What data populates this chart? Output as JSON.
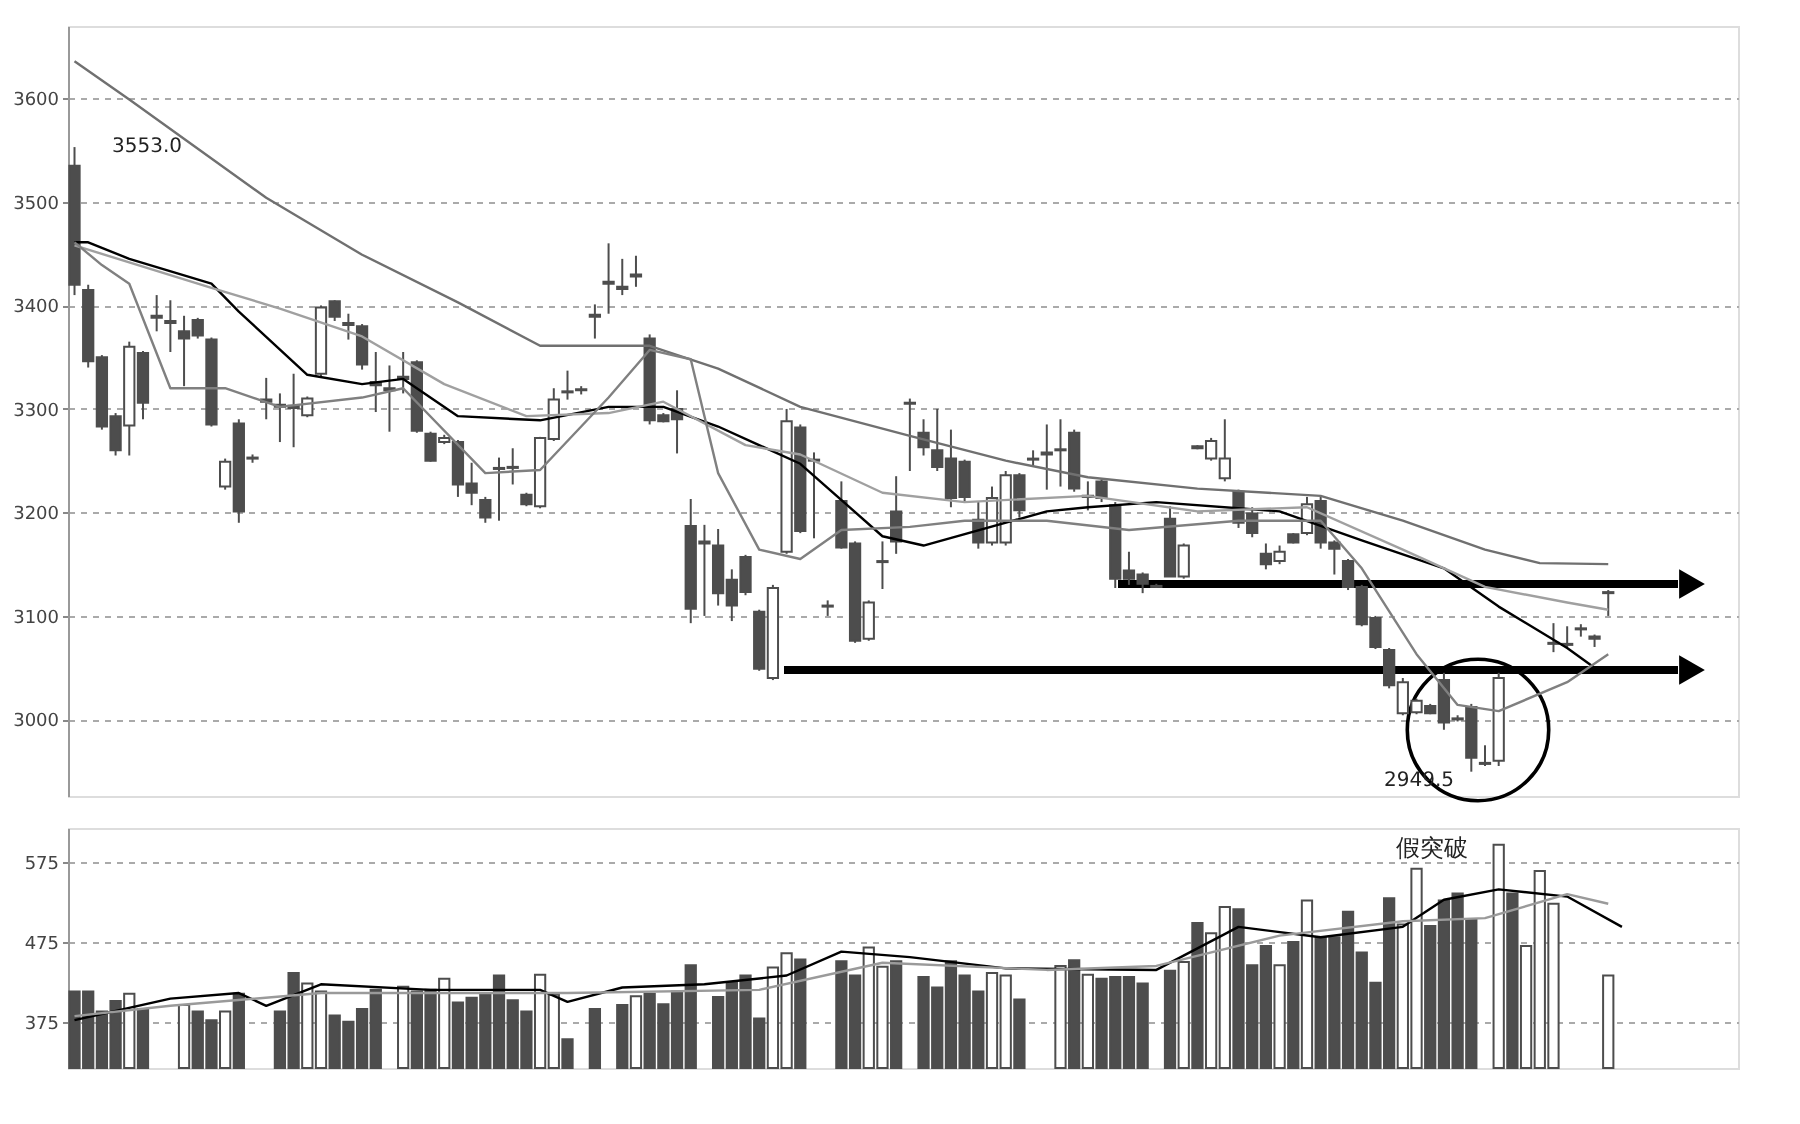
{
  "chart_data": [
    {
      "type": "candlestick",
      "ylim": [
        2926,
        3670
      ],
      "yticks": [
        3000,
        3100,
        3200,
        3300,
        3400,
        3500,
        3600
      ],
      "tick_labels": "y",
      "grid": "y",
      "categories": [
        null,
        null,
        null,
        null,
        null,
        null,
        null,
        null,
        null,
        null,
        null,
        null,
        null,
        null,
        null,
        null,
        null,
        null,
        null,
        null,
        null,
        null,
        null,
        null,
        null,
        null,
        null,
        null,
        null,
        null,
        null,
        null,
        null,
        null,
        null,
        null,
        null,
        null,
        null,
        null,
        null,
        null,
        null,
        null,
        null,
        null,
        null,
        null,
        null,
        null,
        null,
        null,
        null,
        null,
        null,
        null,
        null,
        null,
        null,
        null,
        null,
        null,
        null,
        null,
        null,
        null,
        null,
        null,
        null,
        null,
        null,
        null,
        null,
        null,
        null,
        null,
        null,
        null,
        null,
        null,
        null,
        null,
        null,
        null,
        null,
        null,
        null,
        null,
        null,
        null,
        null,
        null,
        null,
        null,
        null,
        null,
        null,
        null,
        null,
        null,
        null,
        null,
        null,
        null,
        null,
        null,
        null,
        null,
        null,
        null,
        null,
        null,
        null,
        null,
        null,
        null,
        null,
        null,
        null,
        null,
        null,
        null
      ],
      "annotations": [
        "3553.0",
        "2949.5"
      ],
      "series": [
        {
          "color": "#4d4d4d",
          "ohlc": [
            [
              3535,
              3553,
              3410,
              3420
            ],
            [
              3415,
              3420,
              3340,
              3346
            ],
            [
              3350,
              3352,
              3280,
              3283
            ],
            [
              3293,
              3296,
              3255,
              3260
            ],
            [
              3284,
              3365,
              3255,
              3360
            ],
            [
              3354,
              3356,
              3290,
              3306
            ],
            [
              3390,
              3410,
              3375,
              3388
            ],
            [
              3385,
              3405,
              3355,
              3383
            ],
            [
              3375,
              3390,
              3322,
              3368
            ],
            [
              3386,
              3388,
              3368,
              3371
            ],
            [
              3367,
              3369,
              3283,
              3285
            ],
            [
              3225,
              3252,
              3222,
              3249
            ],
            [
              3286,
              3290,
              3190,
              3201
            ],
            [
              3253,
              3256,
              3248,
              3252
            ],
            [
              3309,
              3330,
              3290,
              3307
            ],
            [
              3304,
              3315,
              3268,
              3302
            ],
            [
              3303,
              3334,
              3263,
              3301
            ],
            [
              3294,
              3312,
              3292,
              3310
            ],
            [
              3334,
              3400,
              3330,
              3398
            ],
            [
              3404,
              3405,
              3385,
              3389
            ],
            [
              3383,
              3392,
              3367,
              3381
            ],
            [
              3380,
              3382,
              3338,
              3343
            ],
            [
              3326,
              3355,
              3297,
              3323
            ],
            [
              3320,
              3342,
              3278,
              3318
            ],
            [
              3331,
              3355,
              3315,
              3329
            ],
            [
              3345,
              3347,
              3277,
              3279
            ],
            [
              3276,
              3278,
              3249,
              3250
            ],
            [
              3268,
              3275,
              3266,
              3272
            ],
            [
              3268,
              3270,
              3215,
              3227
            ],
            [
              3228,
              3248,
              3207,
              3219
            ],
            [
              3212,
              3215,
              3190,
              3195
            ],
            [
              3243,
              3253,
              3192,
              3242
            ],
            [
              3243,
              3262,
              3227,
              3244
            ],
            [
              3217,
              3219,
              3206,
              3208
            ],
            [
              3206,
              3273,
              3204,
              3272
            ],
            [
              3271,
              3320,
              3269,
              3309
            ],
            [
              3317,
              3337,
              3309,
              3316
            ],
            [
              3319,
              3322,
              3314,
              3318
            ],
            [
              3391,
              3401,
              3368,
              3389
            ],
            [
              3423,
              3460,
              3392,
              3421
            ],
            [
              3418,
              3445,
              3410,
              3416
            ],
            [
              3430,
              3448,
              3418,
              3428
            ],
            [
              3368,
              3372,
              3285,
              3289
            ],
            [
              3294,
              3296,
              3287,
              3288
            ],
            [
              3300,
              3318,
              3257,
              3290
            ],
            [
              3187,
              3213,
              3093,
              3107
            ],
            [
              3172,
              3188,
              3100,
              3170
            ],
            [
              3168,
              3184,
              3110,
              3122
            ],
            [
              3135,
              3145,
              3095,
              3110
            ],
            [
              3157,
              3159,
              3120,
              3123
            ],
            [
              3104,
              3106,
              3047,
              3049
            ],
            [
              3040,
              3130,
              3038,
              3127
            ],
            [
              3162,
              3300,
              3160,
              3288
            ],
            [
              3282,
              3285,
              3180,
              3182
            ],
            [
              3251,
              3258,
              3175,
              3250
            ],
            [
              3110,
              3115,
              3100,
              3109
            ],
            [
              3211,
              3230,
              3165,
              3166
            ],
            [
              3170,
              3172,
              3074,
              3076
            ],
            [
              3078,
              3115,
              3076,
              3113
            ],
            [
              3153,
              3172,
              3126,
              3152
            ],
            [
              3201,
              3235,
              3160,
              3172
            ],
            [
              3306,
              3310,
              3240,
              3305
            ],
            [
              3277,
              3290,
              3255,
              3263
            ],
            [
              3260,
              3300,
              3240,
              3244
            ],
            [
              3252,
              3280,
              3205,
              3214
            ],
            [
              3249,
              3251,
              3210,
              3215
            ],
            [
              3193,
              3210,
              3165,
              3171
            ],
            [
              3171,
              3225,
              3168,
              3214
            ],
            [
              3171,
              3240,
              3168,
              3236
            ],
            [
              3236,
              3238,
              3195,
              3202
            ],
            [
              3251,
              3260,
              3245,
              3252
            ],
            [
              3258,
              3285,
              3222,
              3256
            ],
            [
              3261,
              3290,
              3225,
              3260
            ],
            [
              3277,
              3280,
              3220,
              3223
            ],
            [
              3216,
              3230,
              3202,
              3215
            ],
            [
              3230,
              3232,
              3210,
              3214
            ],
            [
              3207,
              3210,
              3127,
              3136
            ],
            [
              3144,
              3162,
              3130,
              3136
            ],
            [
              3140,
              3142,
              3122,
              3131
            ],
            [
              3129,
              3131,
              3127,
              3128
            ],
            [
              3194,
              3206,
              3138,
              3138
            ],
            [
              3138,
              3170,
              3136,
              3168
            ],
            [
              3264,
              3265,
              3261,
              3262
            ],
            [
              3252,
              3272,
              3250,
              3269
            ],
            [
              3233,
              3290,
              3230,
              3252
            ],
            [
              3220,
              3222,
              3185,
              3190
            ],
            [
              3199,
              3205,
              3176,
              3180
            ],
            [
              3160,
              3170,
              3145,
              3150
            ],
            [
              3153,
              3168,
              3150,
              3162
            ],
            [
              3179,
              3180,
              3170,
              3171
            ],
            [
              3180,
              3215,
              3178,
              3208
            ],
            [
              3211,
              3215,
              3165,
              3171
            ],
            [
              3171,
              3173,
              3140,
              3165
            ],
            [
              3153,
              3155,
              3125,
              3128
            ],
            [
              3128,
              3130,
              3090,
              3092
            ],
            [
              3098,
              3100,
              3068,
              3070
            ],
            [
              3067,
              3069,
              3030,
              3033
            ],
            [
              3006,
              3040,
              3004,
              3036
            ],
            [
              3007,
              3020,
              3005,
              3018
            ],
            [
              3013,
              3015,
              3005,
              3006
            ],
            [
              3038,
              3045,
              2990,
              2997
            ],
            [
              3001,
              3004,
              2998,
              3000
            ],
            [
              3012,
              3015,
              2949.5,
              2963
            ],
            [
              2957,
              2975,
              2955,
              2958
            ],
            [
              2960,
              3045,
              2955,
              3040
            ],
            null,
            null,
            null,
            [
              3073,
              3093,
              3065,
              3074
            ],
            [
              3073,
              3090,
              3070,
              3072
            ],
            [
              3088,
              3092,
              3080,
              3087
            ],
            [
              3080,
              3082,
              3070,
              3078
            ],
            [
              3123,
              3125,
              3100,
              3122
            ],
            null,
            null,
            null,
            null,
            null,
            null,
            null,
            null,
            null
          ]
        },
        {
          "type": "line",
          "color": "#707070",
          "values": [
            3636,
            null,
            null,
            null,
            3599,
            null,
            null,
            null,
            null,
            null,
            null,
            null,
            null,
            null,
            3504,
            null,
            null,
            null,
            null,
            null,
            null,
            3449,
            null,
            null,
            null,
            null,
            null,
            null,
            3403,
            null,
            null,
            null,
            null,
            null,
            3361,
            null,
            null,
            null,
            null,
            null,
            null,
            null,
            3361,
            null,
            null,
            null,
            null,
            3339,
            null,
            null,
            null,
            null,
            null,
            3302,
            null,
            null,
            null,
            null,
            null,
            null,
            null,
            3274,
            null,
            null,
            null,
            null,
            null,
            null,
            3250,
            null,
            null,
            null,
            null,
            null,
            3234,
            null,
            null,
            null,
            null,
            null,
            null,
            null,
            3223,
            null,
            null,
            null,
            null,
            null,
            null,
            null,
            null,
            3216,
            null,
            null,
            null,
            null,
            null,
            3192,
            null,
            null,
            null,
            null,
            null,
            3164,
            null,
            null,
            null,
            3151,
            null,
            null,
            null,
            null,
            3150,
            null,
            null,
            null,
            null,
            null,
            null,
            null,
            null,
            null
          ]
        },
        {
          "type": "line",
          "color": "#000000",
          "values": [
            3461,
            3461,
            null,
            null,
            3445,
            null,
            null,
            null,
            null,
            null,
            3421,
            null,
            3394,
            null,
            null,
            null,
            null,
            3333,
            null,
            null,
            null,
            3324,
            null,
            null,
            3329,
            null,
            null,
            null,
            3293,
            null,
            null,
            null,
            null,
            null,
            3289,
            null,
            null,
            null,
            null,
            3302,
            null,
            null,
            null,
            3302,
            null,
            null,
            null,
            3283,
            null,
            null,
            null,
            null,
            null,
            3247,
            null,
            null,
            null,
            null,
            null,
            3177,
            null,
            null,
            3168,
            null,
            null,
            null,
            null,
            null,
            null,
            null,
            null,
            3201,
            null,
            null,
            3205,
            null,
            null,
            null,
            null,
            3210,
            null,
            null,
            null,
            null,
            null,
            null,
            null,
            null,
            3201,
            null,
            null,
            null,
            null,
            null,
            3173,
            null,
            null,
            null,
            null,
            null,
            3146,
            null,
            null,
            null,
            3109,
            null,
            null,
            null,
            null,
            3069,
            null,
            3050,
            null,
            null,
            null,
            null,
            null,
            null,
            null,
            null,
            null,
            null
          ]
        },
        {
          "type": "line",
          "color": "#a0a0a0",
          "values": [
            3458,
            null,
            null,
            null,
            null,
            null,
            null,
            null,
            null,
            null,
            3417,
            null,
            null,
            null,
            null,
            3397,
            null,
            null,
            null,
            null,
            null,
            3370,
            null,
            null,
            null,
            null,
            null,
            3324,
            null,
            null,
            null,
            null,
            null,
            3293,
            null,
            null,
            null,
            null,
            null,
            3296,
            null,
            null,
            null,
            3307,
            null,
            null,
            null,
            null,
            null,
            3265,
            null,
            null,
            null,
            3256,
            null,
            null,
            null,
            null,
            null,
            3219,
            null,
            null,
            null,
            null,
            null,
            3210,
            null,
            null,
            null,
            null,
            null,
            null,
            null,
            null,
            3216,
            null,
            null,
            null,
            null,
            null,
            null,
            null,
            3201,
            null,
            null,
            null,
            null,
            null,
            null,
            null,
            3205,
            null,
            null,
            null,
            null,
            null,
            null,
            3164,
            null,
            null,
            null,
            null,
            null,
            3128,
            null,
            null,
            null,
            null,
            null,
            3113,
            null,
            null,
            3106,
            null,
            null,
            null,
            null,
            null,
            null,
            null,
            null,
            null
          ]
        },
        {
          "type": "line",
          "color": "#808080",
          "values": [
            3461,
            null,
            3439,
            null,
            3421,
            null,
            null,
            3320,
            null,
            null,
            null,
            3320,
            null,
            null,
            null,
            3302,
            null,
            null,
            null,
            null,
            null,
            3311,
            null,
            null,
            3320,
            null,
            null,
            null,
            null,
            null,
            3238,
            null,
            null,
            null,
            3241,
            null,
            null,
            null,
            null,
            3311,
            null,
            null,
            3357,
            null,
            null,
            3348,
            null,
            3238,
            null,
            null,
            3164,
            null,
            null,
            3155,
            null,
            null,
            3183,
            null,
            null,
            null,
            null,
            3186,
            null,
            null,
            null,
            3192,
            null,
            null,
            null,
            null,
            null,
            3192,
            null,
            null,
            null,
            null,
            null,
            3183,
            null,
            null,
            null,
            null,
            null,
            null,
            null,
            3192,
            null,
            null,
            null,
            null,
            null,
            3192,
            null,
            null,
            3146,
            null,
            null,
            null,
            3063,
            null,
            null,
            3014,
            null,
            null,
            3008,
            null,
            null,
            null,
            null,
            3036,
            null,
            null,
            3063,
            null,
            null,
            null,
            null,
            null,
            null,
            null,
            null,
            null
          ]
        }
      ]
    },
    {
      "type": "bar",
      "ylim": [
        317,
        618
      ],
      "yticks": [
        375,
        475,
        575
      ],
      "tick_labels": "y",
      "grid": "y",
      "categories": [
        null,
        null,
        null,
        null,
        null,
        null,
        null,
        null,
        null,
        null,
        null,
        null,
        null,
        null,
        null,
        null,
        null,
        null,
        null,
        null,
        null,
        null,
        null,
        null,
        null,
        null,
        null,
        null,
        null,
        null,
        null,
        null,
        null,
        null,
        null,
        null,
        null,
        null,
        null,
        null,
        null,
        null,
        null,
        null,
        null,
        null,
        null,
        null,
        null,
        null,
        null,
        null,
        null,
        null,
        null,
        null,
        null,
        null,
        null,
        null,
        null,
        null,
        null,
        null,
        null,
        null,
        null,
        null,
        null,
        null,
        null,
        null,
        null,
        null,
        null,
        null,
        null,
        null,
        null,
        null,
        null,
        null,
        null,
        null,
        null,
        null,
        null,
        null,
        null,
        null,
        null,
        null,
        null,
        null,
        null,
        null,
        null,
        null,
        null,
        null,
        null,
        null,
        null,
        null,
        null,
        null,
        null,
        null,
        null,
        null,
        null,
        null,
        null,
        null,
        null,
        null,
        null,
        null,
        null,
        null,
        null,
        null
      ],
      "annotations": [
        "假突破"
      ],
      "series": [
        {
          "color": "#4d4d4d",
          "values": [
            413,
            413,
            388,
            401,
            410,
            391,
            null,
            null,
            396,
            388,
            377,
            388,
            410,
            null,
            null,
            388,
            436,
            423,
            413,
            383,
            375,
            391,
            415,
            null,
            419,
            413,
            415,
            429,
            399,
            405,
            410,
            433,
            402,
            388,
            434,
            409,
            353,
            null,
            391,
            null,
            396,
            407,
            410,
            397,
            413,
            446,
            null,
            406,
            425,
            433,
            379,
            443,
            461,
            453,
            null,
            null,
            451,
            433,
            468,
            444,
            451,
            null,
            431,
            418,
            451,
            433,
            413,
            436,
            433,
            403,
            null,
            null,
            445,
            452,
            434,
            429,
            431,
            431,
            423,
            null,
            439,
            450,
            499,
            486,
            519,
            516,
            446,
            470,
            446,
            475,
            527,
            481,
            481,
            513,
            462,
            424,
            530,
            497,
            567,
            495,
            527,
            536,
            503,
            null,
            597,
            536,
            470,
            564,
            523,
            null,
            null,
            null,
            433,
            null,
            null,
            null,
            null,
            null,
            null,
            null,
            null,
            null
          ],
          "colors": [
            "#4d4d4d",
            "#4d4d4d",
            "#4d4d4d",
            "#4d4d4d",
            "#ffffff",
            "#4d4d4d",
            null,
            null,
            "#ffffff",
            "#4d4d4d",
            "#4d4d4d",
            "#ffffff",
            "#4d4d4d",
            null,
            null,
            "#4d4d4d",
            "#4d4d4d",
            "#ffffff",
            "#ffffff",
            "#4d4d4d",
            "#4d4d4d",
            "#4d4d4d",
            "#4d4d4d",
            null,
            "#ffffff",
            "#4d4d4d",
            "#4d4d4d",
            "#ffffff",
            "#4d4d4d",
            "#4d4d4d",
            "#4d4d4d",
            "#4d4d4d",
            "#4d4d4d",
            "#4d4d4d",
            "#ffffff",
            "#ffffff",
            "#4d4d4d",
            null,
            "#4d4d4d",
            null,
            "#4d4d4d",
            "#ffffff",
            "#4d4d4d",
            "#4d4d4d",
            "#4d4d4d",
            "#4d4d4d",
            null,
            "#4d4d4d",
            "#4d4d4d",
            "#4d4d4d",
            "#4d4d4d",
            "#ffffff",
            "#ffffff",
            "#4d4d4d",
            null,
            null,
            "#4d4d4d",
            "#4d4d4d",
            "#ffffff",
            "#ffffff",
            "#4d4d4d",
            null,
            "#4d4d4d",
            "#4d4d4d",
            "#4d4d4d",
            "#4d4d4d",
            "#4d4d4d",
            "#ffffff",
            "#ffffff",
            "#4d4d4d",
            null,
            null,
            "#ffffff",
            "#4d4d4d",
            "#ffffff",
            "#4d4d4d",
            "#4d4d4d",
            "#4d4d4d",
            "#4d4d4d",
            null,
            "#4d4d4d",
            "#ffffff",
            "#4d4d4d",
            "#ffffff",
            "#ffffff",
            "#4d4d4d",
            "#4d4d4d",
            "#4d4d4d",
            "#ffffff",
            "#4d4d4d",
            "#ffffff",
            "#4d4d4d",
            "#4d4d4d",
            "#4d4d4d",
            "#4d4d4d",
            "#4d4d4d",
            "#4d4d4d",
            "#ffffff",
            "#ffffff",
            "#4d4d4d",
            "#4d4d4d",
            "#4d4d4d",
            "#4d4d4d",
            null,
            "#ffffff",
            "#4d4d4d",
            "#ffffff",
            "#ffffff",
            "#ffffff",
            null,
            null,
            null,
            "#ffffff",
            null,
            null,
            null,
            null,
            null,
            null,
            null,
            null,
            null
          ]
        },
        {
          "type": "line",
          "color": "#000000",
          "values": [
            377,
            null,
            null,
            null,
            null,
            null,
            null,
            404,
            null,
            null,
            null,
            null,
            411,
            null,
            395,
            null,
            null,
            null,
            422,
            null,
            null,
            null,
            null,
            null,
            null,
            null,
            415,
            null,
            null,
            null,
            null,
            null,
            null,
            null,
            415,
            null,
            400,
            null,
            null,
            null,
            418,
            null,
            null,
            null,
            null,
            null,
            422,
            null,
            null,
            null,
            null,
            null,
            433,
            null,
            null,
            null,
            463,
            null,
            null,
            null,
            null,
            456,
            null,
            null,
            null,
            null,
            null,
            null,
            442,
            null,
            null,
            null,
            null,
            null,
            null,
            null,
            null,
            null,
            null,
            440,
            null,
            null,
            null,
            null,
            null,
            494,
            null,
            null,
            null,
            null,
            null,
            481,
            null,
            null,
            null,
            null,
            null,
            494,
            null,
            null,
            528,
            null,
            null,
            null,
            541,
            null,
            null,
            null,
            null,
            532,
            null,
            null,
            null,
            494,
            null,
            null,
            null,
            null,
            null,
            null,
            null,
            null
          ]
        },
        {
          "type": "line",
          "color": "#9a9a9a",
          "values": [
            382,
            null,
            null,
            null,
            null,
            null,
            null,
            395,
            null,
            null,
            null,
            null,
            null,
            null,
            null,
            null,
            null,
            null,
            411,
            null,
            null,
            null,
            null,
            null,
            null,
            null,
            null,
            null,
            null,
            null,
            null,
            null,
            null,
            null,
            null,
            null,
            411,
            null,
            null,
            null,
            null,
            null,
            null,
            null,
            null,
            null,
            null,
            null,
            null,
            null,
            415,
            null,
            null,
            null,
            null,
            null,
            null,
            null,
            null,
            449,
            null,
            null,
            null,
            null,
            null,
            null,
            null,
            null,
            null,
            null,
            null,
            440,
            null,
            null,
            null,
            null,
            null,
            null,
            null,
            445,
            null,
            null,
            null,
            null,
            null,
            null,
            null,
            null,
            483,
            null,
            null,
            null,
            null,
            null,
            null,
            null,
            null,
            501,
            null,
            null,
            null,
            null,
            null,
            505,
            null,
            null,
            null,
            null,
            null,
            535,
            null,
            null,
            523,
            null,
            null,
            null,
            null,
            null,
            null,
            null,
            null,
            null
          ]
        }
      ]
    }
  ]
}
